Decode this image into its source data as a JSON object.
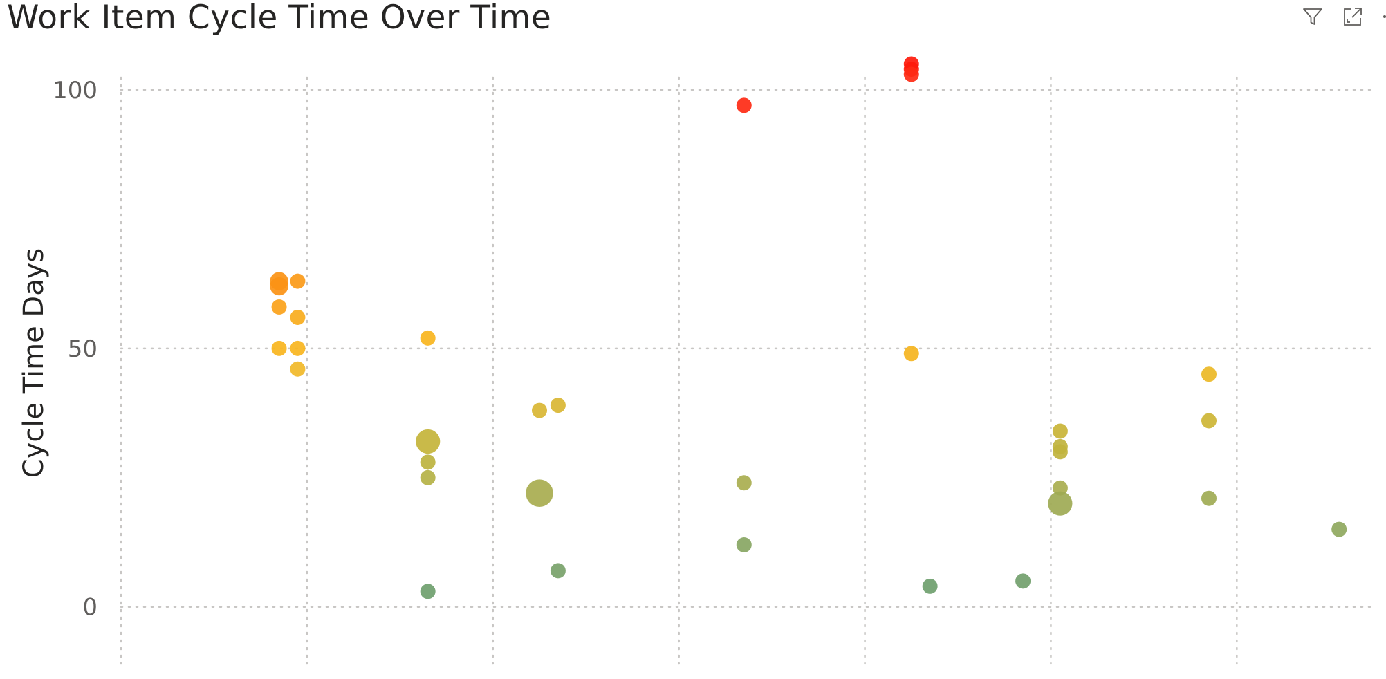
{
  "title": "Work Item Cycle Time Over Time",
  "header_icons": [
    "filter-icon",
    "focus-mode-icon",
    "more-options-icon"
  ],
  "chart_data": {
    "type": "scatter",
    "title": "Work Item Cycle Time Over Time",
    "xlabel": "",
    "ylabel": "Cycle Time Days",
    "ylim": [
      -11,
      104
    ],
    "yticks": [
      0,
      50,
      100
    ],
    "xlim": [
      -0.85,
      5.9
    ],
    "x_gridlines": [
      -0.85,
      0.15,
      1.15,
      2.15,
      3.15,
      4.15,
      5.15
    ],
    "grid": true,
    "legend": "none",
    "color_scale": {
      "low": "#6a9f6e",
      "mid": "#b9b23a",
      "high_mid": "#f7b51d",
      "high": "#fb9215",
      "max": "#fe1a0b"
    },
    "points": [
      {
        "x": 0.0,
        "y": 63,
        "size": 1.2,
        "color": "#fb9215"
      },
      {
        "x": 0.0,
        "y": 62,
        "size": 1.2,
        "color": "#fb9215"
      },
      {
        "x": 0.0,
        "y": 58,
        "size": 1.0,
        "color": "#fba21a"
      },
      {
        "x": 0.0,
        "y": 50,
        "size": 1.0,
        "color": "#f9b51e"
      },
      {
        "x": 0.1,
        "y": 63,
        "size": 1.0,
        "color": "#fb9a18"
      },
      {
        "x": 0.1,
        "y": 56,
        "size": 1.0,
        "color": "#f9ad1c"
      },
      {
        "x": 0.1,
        "y": 50,
        "size": 1.0,
        "color": "#f9b51e"
      },
      {
        "x": 0.1,
        "y": 46,
        "size": 1.0,
        "color": "#f1b928"
      },
      {
        "x": 0.8,
        "y": 52,
        "size": 1.0,
        "color": "#f9b51e"
      },
      {
        "x": 0.8,
        "y": 32,
        "size": 1.6,
        "color": "#c4b43a"
      },
      {
        "x": 0.8,
        "y": 28,
        "size": 1.0,
        "color": "#bdb33f"
      },
      {
        "x": 0.8,
        "y": 25,
        "size": 1.0,
        "color": "#b5b246"
      },
      {
        "x": 0.8,
        "y": 3,
        "size": 1.0,
        "color": "#6fa06e"
      },
      {
        "x": 1.4,
        "y": 38,
        "size": 1.0,
        "color": "#d9b633"
      },
      {
        "x": 1.4,
        "y": 22,
        "size": 1.8,
        "color": "#a8ac4f"
      },
      {
        "x": 1.5,
        "y": 39,
        "size": 1.0,
        "color": "#d9b633"
      },
      {
        "x": 1.5,
        "y": 7,
        "size": 1.0,
        "color": "#78a26a"
      },
      {
        "x": 2.5,
        "y": 97,
        "size": 1.0,
        "color": "#fe2a14"
      },
      {
        "x": 2.5,
        "y": 24,
        "size": 1.0,
        "color": "#a9ae4f"
      },
      {
        "x": 2.5,
        "y": 12,
        "size": 1.0,
        "color": "#88a663"
      },
      {
        "x": 3.4,
        "y": 105,
        "size": 1.0,
        "color": "#fe1a0b"
      },
      {
        "x": 3.4,
        "y": 104,
        "size": 1.0,
        "color": "#fe1a0b"
      },
      {
        "x": 3.4,
        "y": 103,
        "size": 1.0,
        "color": "#fe2a14"
      },
      {
        "x": 3.4,
        "y": 49,
        "size": 1.0,
        "color": "#f5b41f"
      },
      {
        "x": 3.5,
        "y": 4,
        "size": 1.0,
        "color": "#6fa06e"
      },
      {
        "x": 4.0,
        "y": 5,
        "size": 1.0,
        "color": "#72a06d"
      },
      {
        "x": 4.2,
        "y": 34,
        "size": 1.0,
        "color": "#c9b437"
      },
      {
        "x": 4.2,
        "y": 31,
        "size": 1.0,
        "color": "#c0b33d"
      },
      {
        "x": 4.2,
        "y": 30,
        "size": 1.0,
        "color": "#c0b33d"
      },
      {
        "x": 4.2,
        "y": 23,
        "size": 1.0,
        "color": "#a9ae4f"
      },
      {
        "x": 4.2,
        "y": 20,
        "size": 1.6,
        "color": "#9eaa54"
      },
      {
        "x": 5.0,
        "y": 45,
        "size": 1.0,
        "color": "#ecb826"
      },
      {
        "x": 5.0,
        "y": 36,
        "size": 1.0,
        "color": "#cdb535"
      },
      {
        "x": 5.0,
        "y": 21,
        "size": 1.0,
        "color": "#a0ab54"
      },
      {
        "x": 5.7,
        "y": 15,
        "size": 1.0,
        "color": "#8fa85e"
      }
    ]
  }
}
